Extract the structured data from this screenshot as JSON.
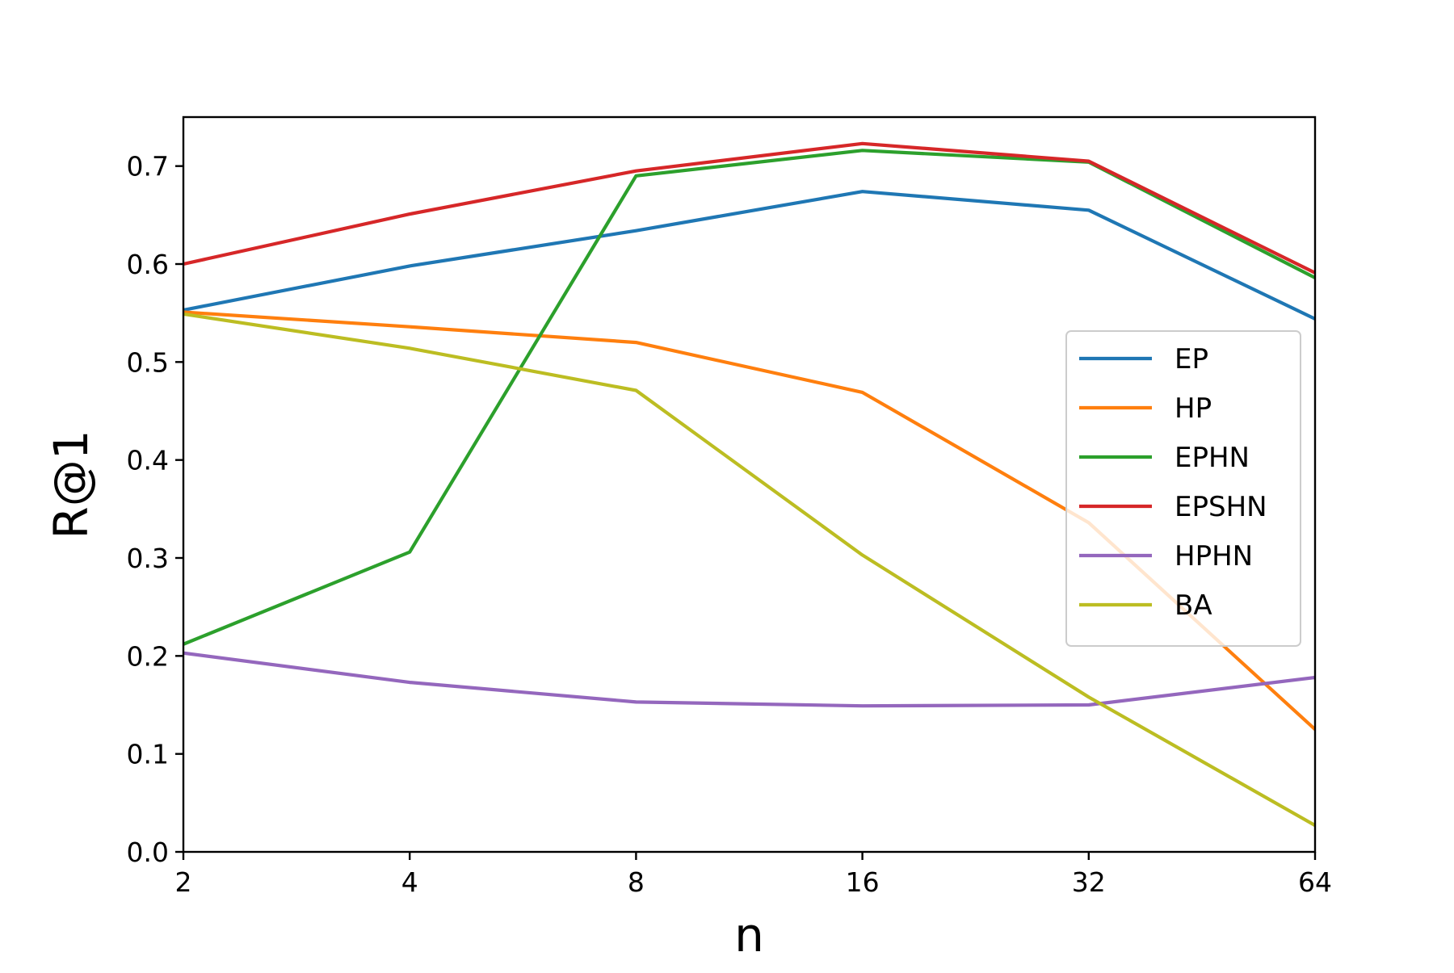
{
  "chart_data": {
    "type": "line",
    "title": "",
    "xlabel": "n",
    "ylabel": "R@1",
    "x_scale": "log2",
    "x": [
      2,
      4,
      8,
      16,
      32,
      64
    ],
    "x_tick_labels": [
      "2",
      "4",
      "8",
      "16",
      "32",
      "64"
    ],
    "xlim": [
      2,
      64
    ],
    "ylim": [
      0,
      0.75
    ],
    "y_ticks": [
      0.0,
      0.1,
      0.2,
      0.3,
      0.4,
      0.5,
      0.6,
      0.7
    ],
    "y_tick_labels": [
      "0.0",
      "0.1",
      "0.2",
      "0.3",
      "0.4",
      "0.5",
      "0.6",
      "0.7"
    ],
    "grid": false,
    "legend_position": "right",
    "series": [
      {
        "name": "EP",
        "color": "#1f77b4",
        "values": [
          0.553,
          0.598,
          0.634,
          0.674,
          0.655,
          0.544
        ]
      },
      {
        "name": "HP",
        "color": "#ff7f0e",
        "values": [
          0.551,
          0.536,
          0.52,
          0.469,
          0.336,
          0.125
        ]
      },
      {
        "name": "EPHN",
        "color": "#2ca02c",
        "values": [
          0.212,
          0.306,
          0.69,
          0.716,
          0.704,
          0.586
        ]
      },
      {
        "name": "EPSHN",
        "color": "#d62728",
        "values": [
          0.6,
          0.651,
          0.695,
          0.723,
          0.705,
          0.591
        ]
      },
      {
        "name": "HPHN",
        "color": "#9467bd",
        "values": [
          0.203,
          0.173,
          0.153,
          0.149,
          0.15,
          0.178
        ]
      },
      {
        "name": "BA",
        "color": "#bcbd22",
        "values": [
          0.549,
          0.514,
          0.471,
          0.303,
          0.158,
          0.027
        ]
      }
    ]
  }
}
